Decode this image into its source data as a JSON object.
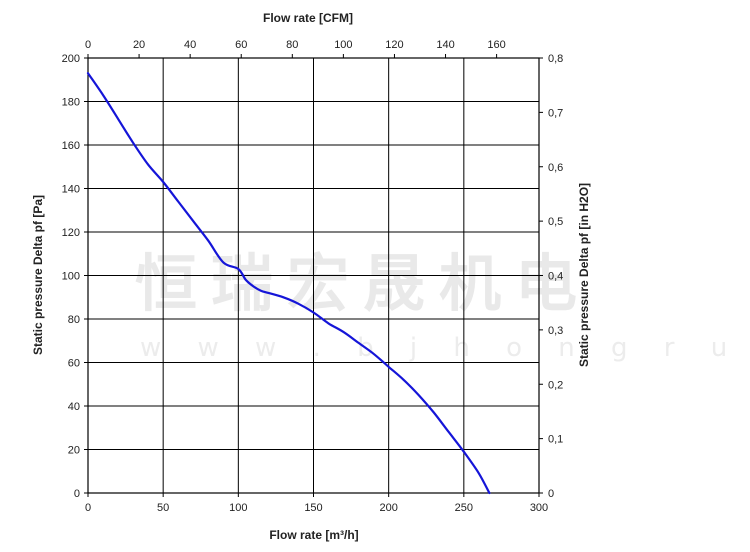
{
  "chart_data": {
    "type": "line",
    "x_bottom": {
      "label": "Flow rate [m³/h]",
      "range": [
        0,
        300
      ],
      "ticks": [
        "0",
        "50",
        "100",
        "150",
        "200",
        "250",
        "300"
      ]
    },
    "x_top": {
      "label": "Flow rate [CFM]",
      "range": [
        0,
        176.6
      ],
      "ticks": [
        "0",
        "20",
        "40",
        "60",
        "80",
        "100",
        "120",
        "140",
        "160"
      ]
    },
    "y_left": {
      "label": "Static pressure Delta pf [Pa]",
      "range": [
        0,
        200
      ],
      "ticks": [
        "0",
        "20",
        "40",
        "60",
        "80",
        "100",
        "120",
        "140",
        "160",
        "180",
        "200"
      ]
    },
    "y_right": {
      "label": "Static pressure Delta pf [in H2O]",
      "range": [
        0,
        0.8
      ],
      "ticks": [
        "0",
        "0,1",
        "0,2",
        "0,3",
        "0,4",
        "0,5",
        "0,6",
        "0,7",
        "0,8"
      ]
    },
    "grid": true,
    "series": [
      {
        "color": "#1515d8",
        "x": [
          0,
          10,
          20,
          30,
          40,
          50,
          60,
          70,
          80,
          90,
          100,
          105,
          110,
          115,
          120,
          130,
          140,
          150,
          160,
          170,
          180,
          190,
          200,
          210,
          220,
          230,
          240,
          250,
          260,
          267
        ],
        "y": [
          193,
          183,
          172,
          161,
          151,
          143,
          134,
          125,
          116,
          106,
          103,
          98,
          95,
          93,
          92,
          90,
          87,
          83,
          78,
          74,
          69,
          64,
          58,
          52,
          45,
          37,
          28,
          19,
          9,
          0
        ]
      }
    ]
  },
  "watermark": {
    "text": "恒瑞宏晟机电",
    "url": "w w w . b j h o n g r u i . c n"
  }
}
